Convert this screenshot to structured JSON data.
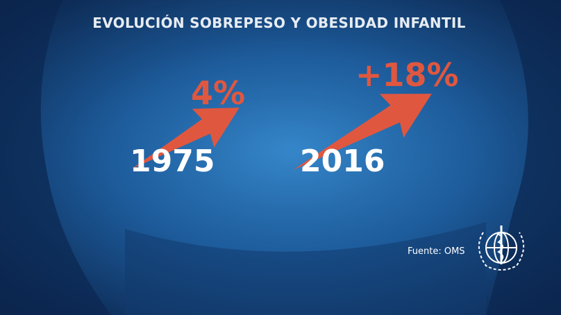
{
  "title": "EVOLUCIÓN SOBREPESO Y OBESIDAD INFANTIL",
  "items": [
    {
      "year": "1975",
      "value": "4%"
    },
    {
      "year": "2016",
      "value": "+18%"
    }
  ],
  "source": "Fuente: OMS"
}
